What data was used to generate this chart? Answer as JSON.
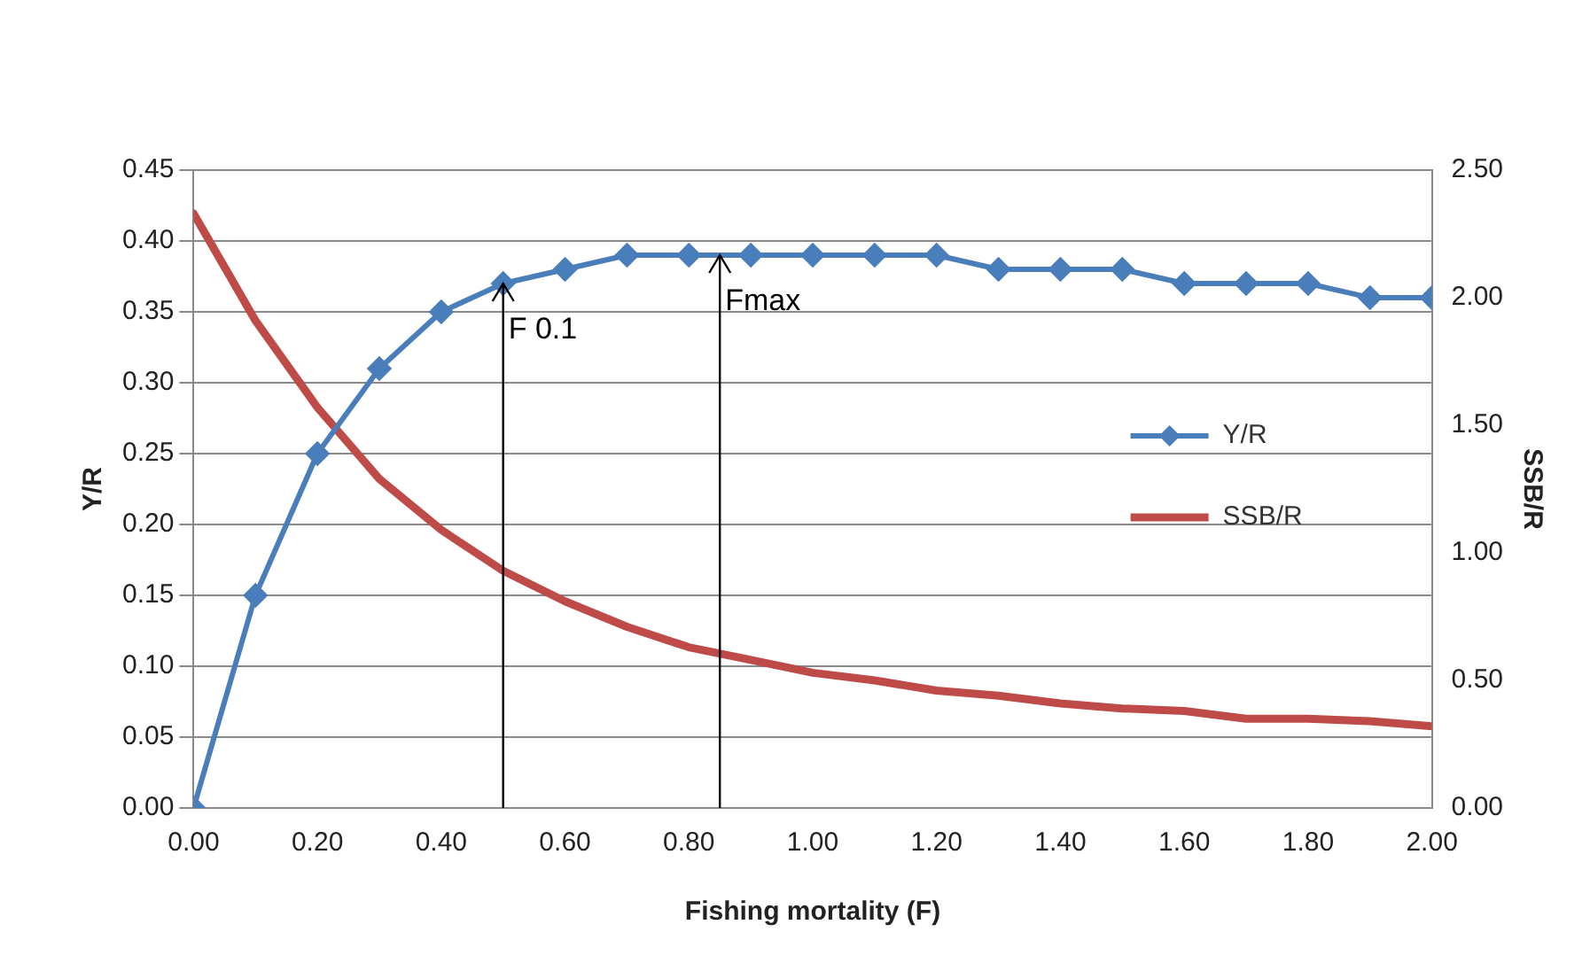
{
  "chart_data": {
    "type": "line",
    "xlabel": "Fishing mortality (F)",
    "ylabel": "Y/R",
    "y2label": "SSB/R",
    "x": [
      0,
      0.1,
      0.2,
      0.3,
      0.4,
      0.5,
      0.6,
      0.7,
      0.8,
      0.9,
      1.0,
      1.1,
      1.2,
      1.3,
      1.4,
      1.5,
      1.6,
      1.7,
      1.8,
      1.9,
      2.0
    ],
    "series": [
      {
        "name": "Y/R",
        "color": "#4a7ebb",
        "marker": "diamond",
        "values": [
          0,
          0.15,
          0.25,
          0.31,
          0.35,
          0.37,
          0.38,
          0.39,
          0.39,
          0.39,
          0.39,
          0.39,
          0.39,
          0.38,
          0.38,
          0.38,
          0.37,
          0.37,
          0.37,
          0.36,
          0.36
        ]
      },
      {
        "name": "SSB/R",
        "color": "#be4b48",
        "marker": "none",
        "axis": "y2",
        "values": [
          2.33,
          1.91,
          1.57,
          1.29,
          1.09,
          0.93,
          0.81,
          0.71,
          0.63,
          0.58,
          0.53,
          0.5,
          0.46,
          0.44,
          0.41,
          0.39,
          0.38,
          0.35,
          0.35,
          0.34,
          0.32
        ]
      }
    ],
    "xlim": [
      0,
      2
    ],
    "xticks": [
      {
        "value": 0,
        "label": "0.00"
      },
      {
        "value": 0.2,
        "label": "0.20"
      },
      {
        "value": 0.4,
        "label": "0.40"
      },
      {
        "value": 0.6,
        "label": "0.60"
      },
      {
        "value": 0.8,
        "label": "0.80"
      },
      {
        "value": 1,
        "label": "1.00"
      },
      {
        "value": 1.2,
        "label": "1.20"
      },
      {
        "value": 1.4,
        "label": "1.40"
      },
      {
        "value": 1.6,
        "label": "1.60"
      },
      {
        "value": 1.8,
        "label": "1.80"
      },
      {
        "value": 2,
        "label": "2.00"
      }
    ],
    "ylim": [
      0,
      0.45
    ],
    "yticks": [
      {
        "value": 0,
        "label": "0.00"
      },
      {
        "value": 0.05,
        "label": "0.05"
      },
      {
        "value": 0.1,
        "label": "0.10"
      },
      {
        "value": 0.15,
        "label": "0.15"
      },
      {
        "value": 0.2,
        "label": "0.20"
      },
      {
        "value": 0.25,
        "label": "0.25"
      },
      {
        "value": 0.3,
        "label": "0.30"
      },
      {
        "value": 0.35,
        "label": "0.35"
      },
      {
        "value": 0.4,
        "label": "0.40"
      },
      {
        "value": 0.45,
        "label": "0.45"
      }
    ],
    "y2lim": [
      0,
      2.5
    ],
    "y2ticks": [
      {
        "value": 0,
        "label": "0.00"
      },
      {
        "value": 0.5,
        "label": "0.50"
      },
      {
        "value": 1,
        "label": "1.00"
      },
      {
        "value": 1.5,
        "label": "1.50"
      },
      {
        "value": 2,
        "label": "2.00"
      },
      {
        "value": 2.5,
        "label": "2.50"
      }
    ],
    "ref_lines": [
      {
        "axis": "x",
        "value": 0.5,
        "label": "F 0.1",
        "color": "#000000"
      },
      {
        "axis": "x",
        "value": 0.85,
        "label": "Fmax",
        "color": "#000000"
      }
    ],
    "grid": "y",
    "legend": "right",
    "line_style": "solid"
  }
}
